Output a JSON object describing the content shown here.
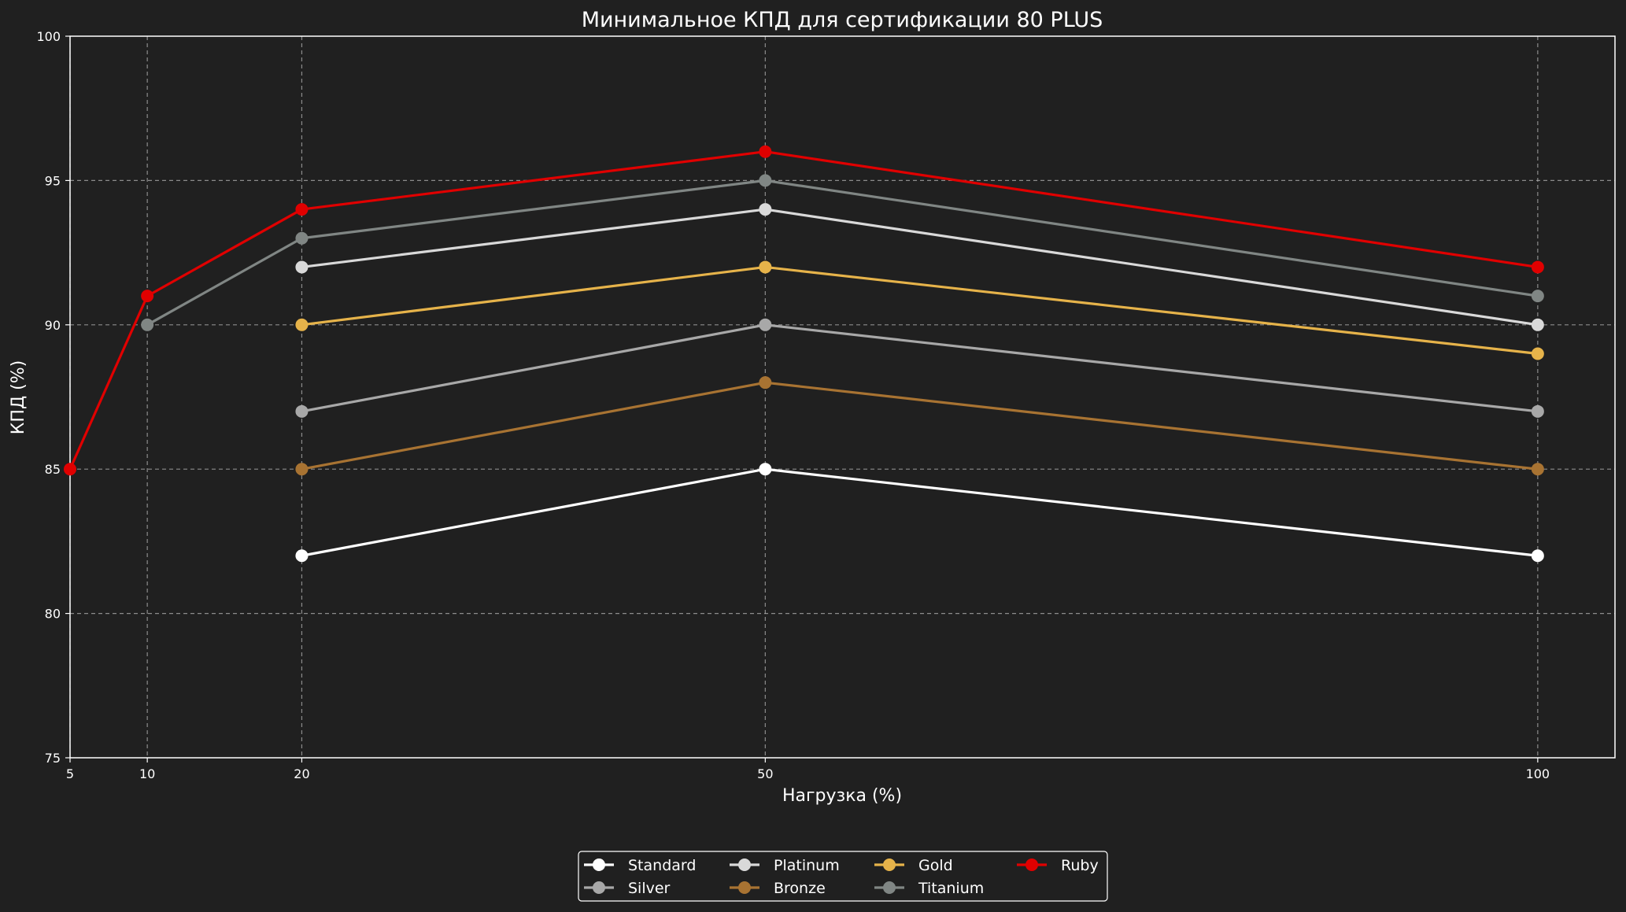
{
  "chart_data": {
    "type": "line",
    "title": "Минимальное КПД для сертификации 80 PLUS",
    "xlabel": "Нагрузка (%)",
    "ylabel": "КПД (%)",
    "xlim": [
      5,
      105
    ],
    "ylim": [
      75,
      100
    ],
    "xticks": [
      "5",
      "10",
      "20",
      "50",
      "100"
    ],
    "yticks": [
      "75",
      "80",
      "85",
      "90",
      "95",
      "100"
    ],
    "grid": true,
    "legend_position": "bottom-center",
    "background_color": "#202020",
    "series": [
      {
        "name": "Standard",
        "color": "#ffffff",
        "points": [
          [
            20,
            82
          ],
          [
            50,
            85
          ],
          [
            100,
            82
          ]
        ]
      },
      {
        "name": "Silver",
        "color": "#a8a8a8",
        "points": [
          [
            20,
            87
          ],
          [
            50,
            90
          ],
          [
            100,
            87
          ]
        ]
      },
      {
        "name": "Platinum",
        "color": "#d9d9d9",
        "points": [
          [
            20,
            92
          ],
          [
            50,
            94
          ],
          [
            100,
            90
          ]
        ]
      },
      {
        "name": "Bronze",
        "color": "#a87332",
        "points": [
          [
            20,
            85
          ],
          [
            50,
            88
          ],
          [
            100,
            85
          ]
        ]
      },
      {
        "name": "Gold",
        "color": "#e6b34a",
        "points": [
          [
            20,
            90
          ],
          [
            50,
            92
          ],
          [
            100,
            89
          ]
        ]
      },
      {
        "name": "Titanium",
        "color": "#808684",
        "points": [
          [
            10,
            90
          ],
          [
            20,
            93
          ],
          [
            50,
            95
          ],
          [
            100,
            91
          ]
        ]
      },
      {
        "name": "Ruby",
        "color": "#e00000",
        "points": [
          [
            5,
            85
          ],
          [
            10,
            91
          ],
          [
            20,
            94
          ],
          [
            50,
            96
          ],
          [
            100,
            92
          ]
        ]
      }
    ]
  }
}
